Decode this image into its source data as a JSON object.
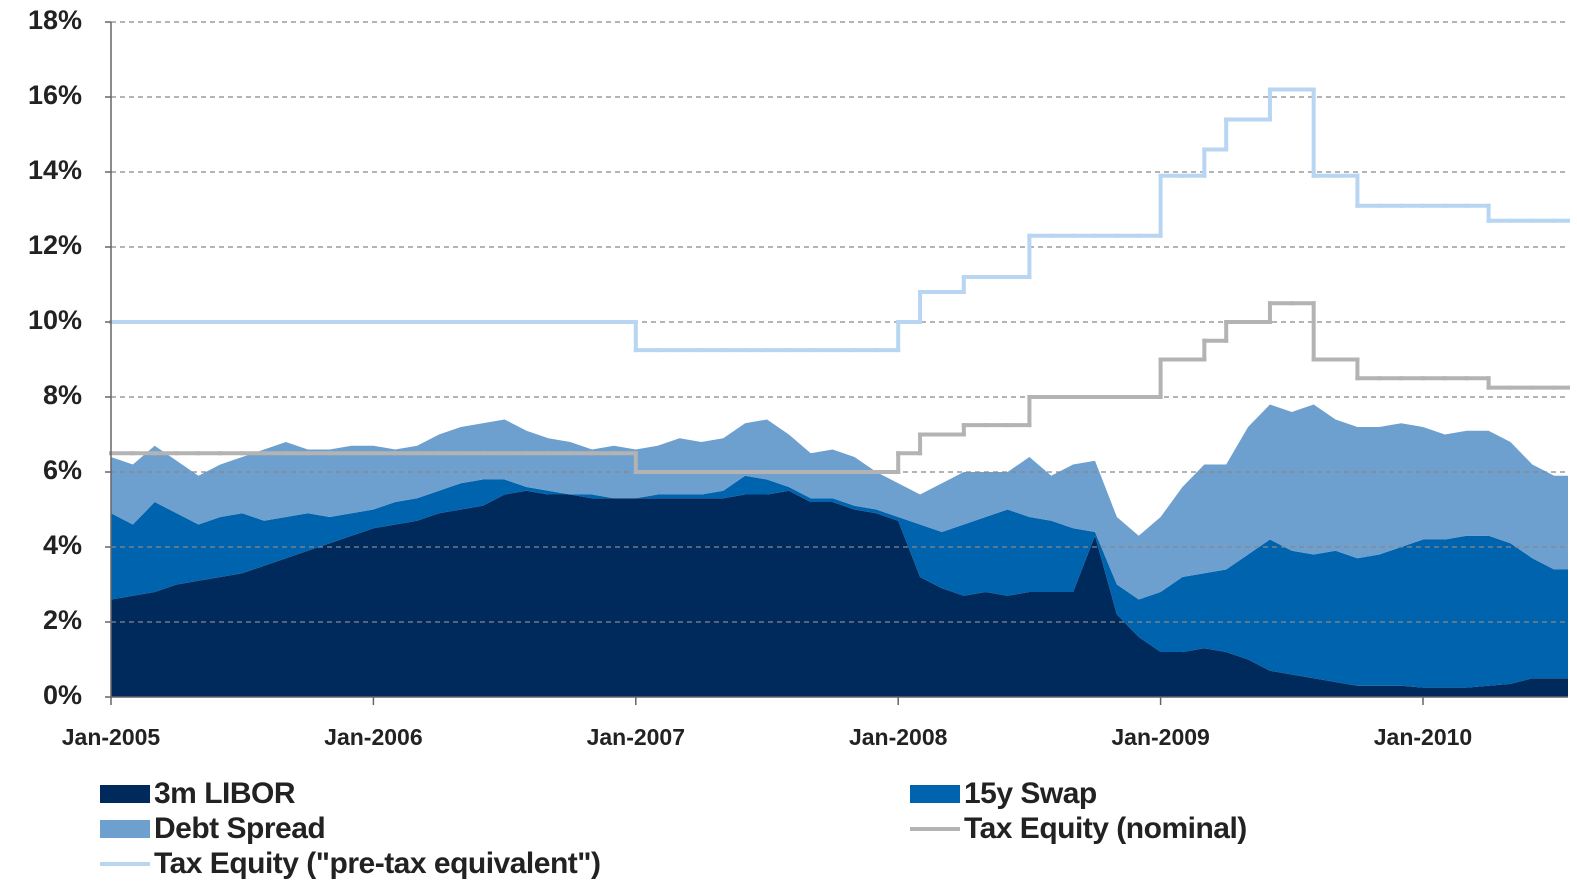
{
  "chart_data": {
    "type": "area",
    "x": [
      "Jan-2005",
      "Feb-2005",
      "Mar-2005",
      "Apr-2005",
      "May-2005",
      "Jun-2005",
      "Jul-2005",
      "Aug-2005",
      "Sep-2005",
      "Oct-2005",
      "Nov-2005",
      "Dec-2005",
      "Jan-2006",
      "Feb-2006",
      "Mar-2006",
      "Apr-2006",
      "May-2006",
      "Jun-2006",
      "Jul-2006",
      "Aug-2006",
      "Sep-2006",
      "Oct-2006",
      "Nov-2006",
      "Dec-2006",
      "Jan-2007",
      "Feb-2007",
      "Mar-2007",
      "Apr-2007",
      "May-2007",
      "Jun-2007",
      "Jul-2007",
      "Aug-2007",
      "Sep-2007",
      "Oct-2007",
      "Nov-2007",
      "Dec-2007",
      "Jan-2008",
      "Feb-2008",
      "Mar-2008",
      "Apr-2008",
      "May-2008",
      "Jun-2008",
      "Jul-2008",
      "Aug-2008",
      "Sep-2008",
      "Oct-2008",
      "Nov-2008",
      "Dec-2008",
      "Jan-2009",
      "Feb-2009",
      "Mar-2009",
      "Apr-2009",
      "May-2009",
      "Jun-2009",
      "Jul-2009",
      "Aug-2009",
      "Sep-2009",
      "Oct-2009",
      "Nov-2009",
      "Dec-2009",
      "Jan-2010",
      "Feb-2010",
      "Mar-2010",
      "Apr-2010",
      "May-2010",
      "Jun-2010",
      "Jul-2010"
    ],
    "xticks": [
      "Jan-2005",
      "Jan-2006",
      "Jan-2007",
      "Jan-2008",
      "Jan-2009",
      "Jan-2010"
    ],
    "ylim": [
      0,
      18
    ],
    "yticks": [
      {
        "value": 0,
        "label": "0%"
      },
      {
        "value": 2,
        "label": "2%"
      },
      {
        "value": 4,
        "label": "4%"
      },
      {
        "value": 6,
        "label": "6%"
      },
      {
        "value": 8,
        "label": "8%"
      },
      {
        "value": 10,
        "label": "10%"
      },
      {
        "value": 12,
        "label": "12%"
      },
      {
        "value": 14,
        "label": "14%"
      },
      {
        "value": 16,
        "label": "16%"
      },
      {
        "value": 18,
        "label": "18%"
      }
    ],
    "grid": true,
    "legend": "bottom",
    "series": [
      {
        "name": "3m LIBOR",
        "color": "#002a5c",
        "type": "area",
        "values": [
          2.6,
          2.7,
          2.8,
          3.0,
          3.1,
          3.2,
          3.3,
          3.5,
          3.7,
          3.9,
          4.1,
          4.3,
          4.5,
          4.6,
          4.7,
          4.9,
          5.0,
          5.1,
          5.4,
          5.5,
          5.4,
          5.4,
          5.3,
          5.3,
          5.3,
          5.3,
          5.3,
          5.3,
          5.3,
          5.4,
          5.4,
          5.5,
          5.2,
          5.2,
          5.0,
          4.9,
          4.7,
          3.2,
          2.9,
          2.7,
          2.8,
          2.7,
          2.8,
          2.8,
          2.8,
          4.3,
          2.2,
          1.6,
          1.2,
          1.2,
          1.3,
          1.2,
          1.0,
          0.7,
          0.6,
          0.5,
          0.4,
          0.3,
          0.3,
          0.3,
          0.25,
          0.25,
          0.25,
          0.3,
          0.35,
          0.5,
          0.5
        ]
      },
      {
        "name": "15y Swap",
        "color": "#0063ad",
        "type": "area",
        "values": [
          2.3,
          1.9,
          2.4,
          1.9,
          1.5,
          1.6,
          1.6,
          1.2,
          1.1,
          1.0,
          0.7,
          0.6,
          0.5,
          0.6,
          0.6,
          0.6,
          0.7,
          0.7,
          0.4,
          0.1,
          0.1,
          0,
          0.1,
          0,
          0,
          0.1,
          0.1,
          0.1,
          0.2,
          0.5,
          0.4,
          0.1,
          0.1,
          0.1,
          0.1,
          0.1,
          0.1,
          1.4,
          1.5,
          1.9,
          2.0,
          2.3,
          2.0,
          1.9,
          1.7,
          0.1,
          0.8,
          1.0,
          1.6,
          2.0,
          2.0,
          2.2,
          2.8,
          3.5,
          3.3,
          3.3,
          3.5,
          3.4,
          3.5,
          3.7,
          3.95,
          3.95,
          4.05,
          4.0,
          3.75,
          3.2,
          2.9
        ]
      },
      {
        "name": "Debt Spread",
        "color": "#6d9fcf",
        "type": "area",
        "values": [
          1.5,
          1.6,
          1.5,
          1.4,
          1.3,
          1.4,
          1.5,
          1.9,
          2.0,
          1.7,
          1.8,
          1.8,
          1.7,
          1.4,
          1.4,
          1.5,
          1.5,
          1.5,
          1.6,
          1.5,
          1.4,
          1.4,
          1.2,
          1.4,
          1.3,
          1.3,
          1.5,
          1.4,
          1.4,
          1.4,
          1.6,
          1.4,
          1.2,
          1.3,
          1.3,
          1.0,
          0.9,
          0.8,
          1.3,
          1.4,
          1.2,
          1.0,
          1.6,
          1.2,
          1.7,
          1.9,
          1.8,
          1.7,
          2.0,
          2.4,
          2.9,
          2.8,
          3.4,
          3.6,
          3.7,
          4.0,
          3.5,
          3.5,
          3.4,
          3.3,
          3.0,
          2.8,
          2.8,
          2.8,
          2.7,
          2.5,
          2.5
        ]
      },
      {
        "name": "Tax Equity (nominal)",
        "color": "#b3b3b3",
        "type": "step",
        "values": [
          6.5,
          6.5,
          6.5,
          6.5,
          6.5,
          6.5,
          6.5,
          6.5,
          6.5,
          6.5,
          6.5,
          6.5,
          6.5,
          6.5,
          6.5,
          6.5,
          6.5,
          6.5,
          6.5,
          6.5,
          6.5,
          6.5,
          6.5,
          6.5,
          6.0,
          6.0,
          6.0,
          6.0,
          6.0,
          6.0,
          6.0,
          6.0,
          6.0,
          6.0,
          6.0,
          6.0,
          6.5,
          7.0,
          7.0,
          7.25,
          7.25,
          7.25,
          8.0,
          8.0,
          8.0,
          8.0,
          8.0,
          8.0,
          9.0,
          9.0,
          9.5,
          10.0,
          10.0,
          10.5,
          10.5,
          9.0,
          9.0,
          8.5,
          8.5,
          8.5,
          8.5,
          8.5,
          8.5,
          8.25,
          8.25,
          8.25,
          8.25
        ]
      },
      {
        "name": "Tax Equity (\"pre-tax equivalent\")",
        "color": "#b8d6f2",
        "type": "step",
        "values": [
          10.0,
          10.0,
          10.0,
          10.0,
          10.0,
          10.0,
          10.0,
          10.0,
          10.0,
          10.0,
          10.0,
          10.0,
          10.0,
          10.0,
          10.0,
          10.0,
          10.0,
          10.0,
          10.0,
          10.0,
          10.0,
          10.0,
          10.0,
          10.0,
          9.25,
          9.25,
          9.25,
          9.25,
          9.25,
          9.25,
          9.25,
          9.25,
          9.25,
          9.25,
          9.25,
          9.25,
          10.0,
          10.8,
          10.8,
          11.2,
          11.2,
          11.2,
          12.3,
          12.3,
          12.3,
          12.3,
          12.3,
          12.3,
          13.9,
          13.9,
          14.6,
          15.4,
          15.4,
          16.2,
          16.2,
          13.9,
          13.9,
          13.1,
          13.1,
          13.1,
          13.1,
          13.1,
          13.1,
          12.7,
          12.7,
          12.7,
          12.7
        ]
      }
    ]
  }
}
